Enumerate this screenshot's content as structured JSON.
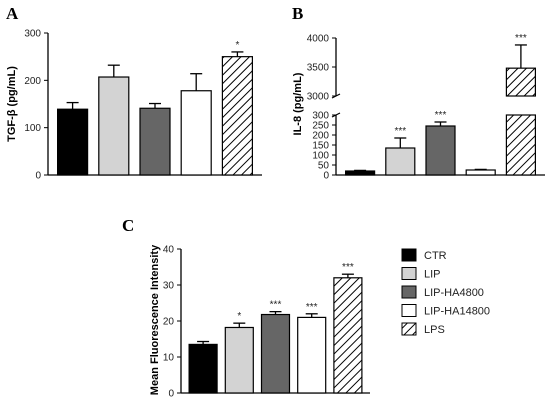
{
  "patterns": {
    "CTR": {
      "fill": "#000000",
      "hatch": false
    },
    "LIP": {
      "fill": "#d3d3d3",
      "hatch": false
    },
    "LIP-HA4800": {
      "fill": "#666666",
      "hatch": false
    },
    "LIP-HA14800": {
      "fill": "#ffffff",
      "hatch": false
    },
    "LPS": {
      "fill": "#ffffff",
      "hatch": true
    }
  },
  "legend": {
    "items": [
      "CTR",
      "LIP",
      "LIP-HA4800",
      "LIP-HA14800",
      "LPS"
    ]
  },
  "chart_data": [
    {
      "panel": "A",
      "type": "bar",
      "ylabel": "TGF-β (pg/mL)",
      "categories": [
        "CTR",
        "LIP",
        "LIP-HA4800",
        "LIP-HA14800",
        "LPS"
      ],
      "values": [
        139,
        207,
        141,
        178,
        250
      ],
      "errors": [
        14,
        25,
        10,
        36,
        10
      ],
      "significance": [
        "",
        "",
        "",
        "",
        "*"
      ],
      "ylim": [
        0,
        300
      ],
      "yticks": [
        0,
        100,
        200,
        300
      ]
    },
    {
      "panel": "B",
      "type": "bar",
      "ylabel": "IL-8 (pg/mL)",
      "categories": [
        "CTR",
        "LIP",
        "LIP-HA4800",
        "LIP-HA14800",
        "LPS"
      ],
      "values": [
        20,
        135,
        245,
        25,
        3480
      ],
      "errors": [
        3,
        50,
        20,
        3,
        400
      ],
      "significance": [
        "",
        "***",
        "***",
        "",
        "***"
      ],
      "axis_break": {
        "lower": [
          0,
          300
        ],
        "upper": [
          3000,
          4000
        ]
      },
      "yticks": [
        0,
        50,
        100,
        150,
        200,
        250,
        300,
        3000,
        3500,
        4000
      ]
    },
    {
      "panel": "C",
      "type": "bar",
      "ylabel": "Mean Fluorescence Intensity",
      "categories": [
        "CTR",
        "LIP",
        "LIP-HA4800",
        "LIP-HA14800",
        "LPS"
      ],
      "values": [
        13.5,
        18.2,
        21.8,
        21.0,
        32.0
      ],
      "errors": [
        0.8,
        1.2,
        0.8,
        1.0,
        1.0
      ],
      "significance": [
        "",
        "*",
        "***",
        "***",
        "***"
      ],
      "ylim": [
        0,
        40
      ],
      "yticks": [
        0,
        10,
        20,
        30,
        40
      ]
    }
  ]
}
